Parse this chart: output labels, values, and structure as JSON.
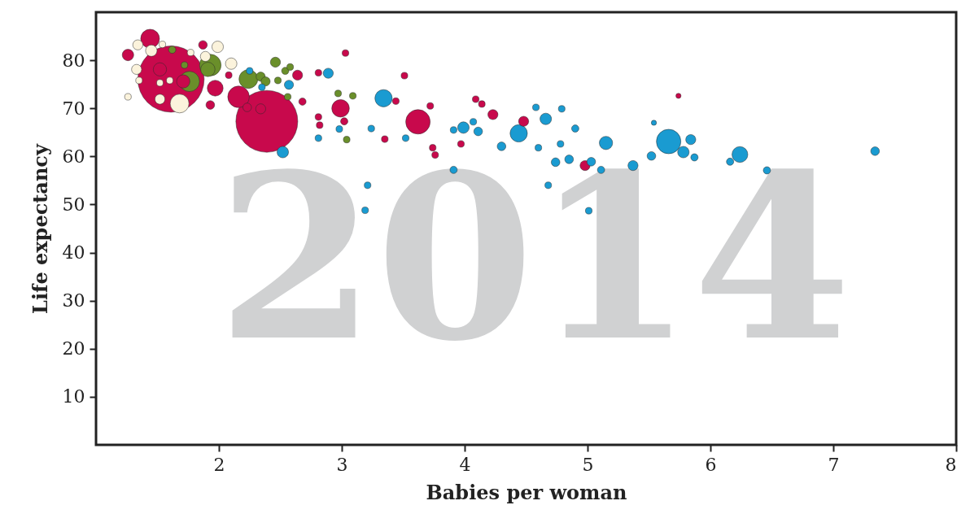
{
  "chart_data": {
    "type": "bubble",
    "xlabel": "Babies per woman",
    "ylabel": "Life expectancy",
    "annotations": [
      "2014"
    ],
    "xlim": [
      1,
      8
    ],
    "ylim": [
      0,
      90
    ],
    "xticks": [
      2,
      3,
      4,
      5,
      6,
      7,
      8
    ],
    "yticks": [
      10,
      20,
      30,
      40,
      50,
      60,
      70,
      80
    ],
    "grid": false,
    "series": [
      {
        "color": "#c8094c",
        "x": [
          1.61,
          2.39,
          1.44,
          1.26,
          1.97,
          1.71,
          1.52,
          2.16,
          2.64,
          2.68,
          1.93,
          1.87,
          2.34,
          2.23,
          2.08,
          2.81,
          2.82,
          2.81,
          2.99,
          3.02,
          3.62,
          3.44,
          3.51,
          3.72,
          3.35,
          3.74,
          3.76,
          3.97,
          4.09,
          4.14,
          4.23,
          4.48,
          4.98,
          5.74,
          3.03
        ],
        "values": [
          76.1,
          67.3,
          84.5,
          81.1,
          74.2,
          75.6,
          78.1,
          72.4,
          76.9,
          71.4,
          70.7,
          83.2,
          69.9,
          70.2,
          76.9,
          68.2,
          66.5,
          77.4,
          70.0,
          67.3,
          67.2,
          71.5,
          76.8,
          70.5,
          63.6,
          61.8,
          60.3,
          62.6,
          71.9,
          70.9,
          68.7,
          67.3,
          58.1,
          72.6,
          81.5
        ],
        "sizes": [
          1,
          0.87,
          0.08,
          0.03,
          0.057,
          0.04,
          0.04,
          0.106,
          0.023,
          0.012,
          0.017,
          0.017,
          0.023,
          0.017,
          0.01,
          0.01,
          0.01,
          0.01,
          0.07,
          0.012,
          0.136,
          0.01,
          0.01,
          0.01,
          0.01,
          0.01,
          0.01,
          0.01,
          0.01,
          0.01,
          0.023,
          0.023,
          0.023,
          0.006,
          0.01
        ]
      },
      {
        "color": "#6a8f2a",
        "x": [
          1.76,
          1.91,
          1.93,
          2.24,
          2.34,
          2.38,
          2.46,
          2.54,
          2.58,
          1.62,
          1.72,
          2.56,
          2.48,
          2.97,
          3.09,
          3.04
        ],
        "values": [
          75.6,
          78.1,
          79.0,
          76.1,
          76.6,
          75.6,
          79.6,
          77.8,
          78.6,
          82.2,
          79.0,
          72.4,
          75.8,
          73.1,
          72.6,
          63.5
        ],
        "sizes": [
          0.093,
          0.047,
          0.106,
          0.08,
          0.019,
          0.019,
          0.023,
          0.012,
          0.01,
          0.012,
          0.01,
          0.01,
          0.01,
          0.01,
          0.01,
          0.01
        ]
      },
      {
        "color": "#fbf3dc",
        "x": [
          1.68,
          1.52,
          1.45,
          1.34,
          1.33,
          1.99,
          1.89,
          2.1,
          1.77,
          1.52,
          1.26,
          1.35,
          1.6,
          1.54
        ],
        "values": [
          71.0,
          71.9,
          82.0,
          83.2,
          78.1,
          82.8,
          80.8,
          79.3,
          81.6,
          75.3,
          72.4,
          75.8,
          75.8,
          83.3
        ],
        "sizes": [
          0.08,
          0.023,
          0.03,
          0.023,
          0.023,
          0.03,
          0.023,
          0.03,
          0.01,
          0.01,
          0.01,
          0.01,
          0.01,
          0.01
        ]
      },
      {
        "color": "#1a9bd1",
        "x": [
          2.52,
          2.89,
          2.57,
          2.25,
          2.35,
          3.34,
          3.99,
          4.11,
          4.07,
          4.44,
          4.66,
          4.3,
          4.6,
          4.85,
          4.74,
          5.03,
          5.11,
          5.15,
          4.9,
          3.91,
          4.68,
          4.58,
          4.79,
          4.78,
          3.21,
          3.19,
          5.01,
          3.24,
          2.98,
          2.81,
          3.52,
          3.91,
          5.66,
          5.84,
          5.78,
          5.87,
          5.52,
          5.37,
          6.24,
          6.16,
          6.46,
          7.34,
          5.54
        ],
        "values": [
          60.9,
          77.3,
          74.9,
          77.8,
          74.4,
          72.1,
          66.0,
          65.2,
          67.2,
          64.8,
          67.8,
          62.1,
          61.8,
          59.4,
          58.8,
          58.9,
          57.2,
          62.8,
          65.8,
          57.2,
          54.0,
          70.2,
          69.9,
          62.6,
          54.0,
          48.8,
          48.7,
          65.8,
          65.7,
          63.8,
          63.8,
          65.5,
          63.1,
          63.5,
          60.9,
          59.8,
          60.1,
          58.1,
          60.4,
          58.9,
          57.1,
          61.1,
          67.0
        ],
        "sizes": [
          0.03,
          0.023,
          0.019,
          0.01,
          0.01,
          0.068,
          0.03,
          0.017,
          0.01,
          0.068,
          0.03,
          0.017,
          0.01,
          0.017,
          0.017,
          0.017,
          0.012,
          0.04,
          0.012,
          0.012,
          0.01,
          0.01,
          0.01,
          0.01,
          0.01,
          0.01,
          0.01,
          0.01,
          0.01,
          0.01,
          0.01,
          0.01,
          0.136,
          0.023,
          0.03,
          0.012,
          0.017,
          0.023,
          0.057,
          0.012,
          0.012,
          0.017,
          0.006
        ]
      }
    ]
  }
}
